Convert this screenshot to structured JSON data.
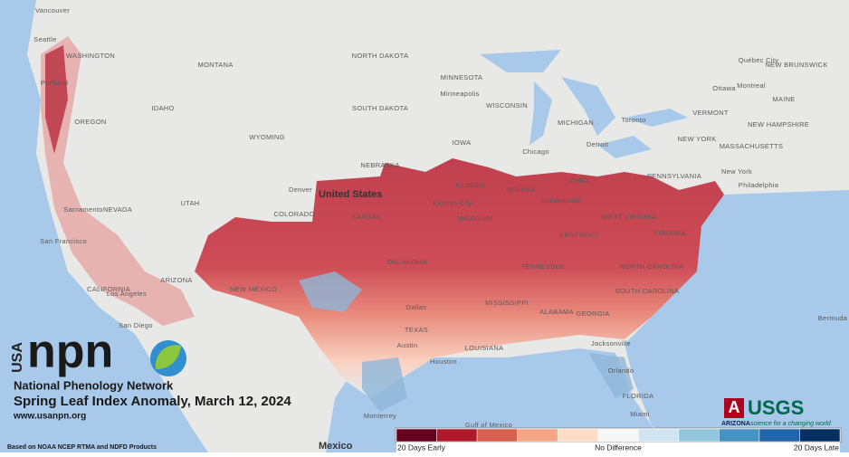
{
  "map": {
    "labels": [
      "Vancouver",
      "Seattle",
      "Portland",
      "WASHINGTON",
      "OREGON",
      "IDAHO",
      "MONTANA",
      "WYOMING",
      "NORTH DAKOTA",
      "SOUTH DAKOTA",
      "MINNESOTA",
      "Minneapolis",
      "WISCONSIN",
      "MICHIGAN",
      "Chicago",
      "Detroit",
      "Toronto",
      "Ottawa",
      "Montreal",
      "Québec City",
      "NEW BRUNSWICK",
      "MAINE",
      "VERMONT",
      "NEW HAMPSHIRE",
      "MASSACHUSETTS",
      "NEW YORK",
      "New York",
      "Philadelphia",
      "PENNSYLVANIA",
      "OHIO",
      "INDIANA",
      "Indianapolis",
      "ILLINOIS",
      "IOWA",
      "NEBRASKA",
      "Denver",
      "COLORADO",
      "KANSAS",
      "Kansas City",
      "MISSOURI",
      "UTAH",
      "NEVADA",
      "Sacramento",
      "San Francisco",
      "CALIFORNIA",
      "Los Angeles",
      "San Diego",
      "ARIZONA",
      "NEW MEXICO",
      "OKLAHOMA",
      "TEXAS",
      "Dallas",
      "Austin",
      "Houston",
      "LOUISIANA",
      "MISSISSIPPI",
      "ALABAMA",
      "GEORGIA",
      "SOUTH CAROLINA",
      "NORTH CAROLINA",
      "KENTUCKY",
      "TENNESSEE",
      "WEST VIRGINIA",
      "VIRGINIA",
      "Jacksonville",
      "Orlando",
      "FLORIDA",
      "Miami",
      "Gulf of Mexico",
      "Monterrey",
      "Bermuda"
    ],
    "country_us": "United States",
    "country_mexico": "Mexico"
  },
  "branding": {
    "usa": "USA",
    "npn": "npn",
    "network": "National Phenology Network",
    "url": "www.usanpn.org",
    "arizona": "ARIZONA",
    "usgs": "USGS",
    "usgs_tagline": "science for a changing world"
  },
  "title": "Spring Leaf Index Anomaly, March 12, 2024",
  "source": "Based on NOAA NCEP RTMA and NDFD Products",
  "legend": {
    "colors": [
      "#67001f",
      "#b2182b",
      "#d6604d",
      "#f4a582",
      "#fddbc7",
      "#f7f7f7",
      "#d1e5f0",
      "#92c5de",
      "#4393c3",
      "#2166ac",
      "#053061"
    ],
    "labels": [
      "20 Days Early",
      "No Difference",
      "20 Days Late"
    ]
  }
}
